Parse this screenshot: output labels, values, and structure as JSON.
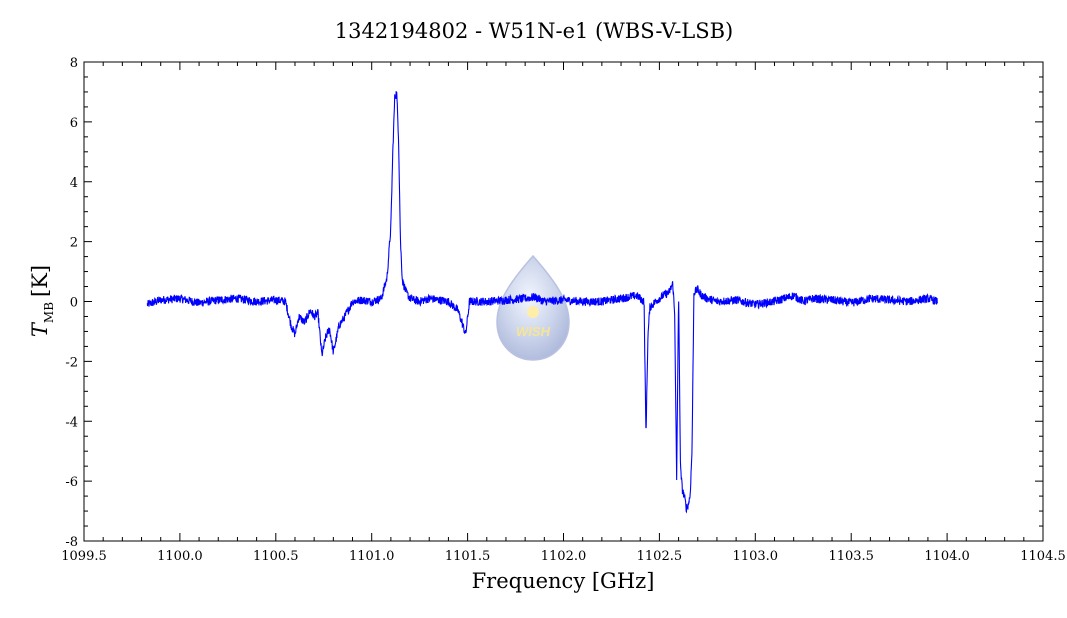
{
  "chart_data": {
    "type": "line",
    "title": "1342194802 - W51N-e1 (WBS-V-LSB)",
    "xlabel": "Frequency [GHz]",
    "ylabel_symbol": "T",
    "ylabel_subscript": "MB",
    "ylabel_unit": "[K]",
    "xlim": [
      1099.5,
      1104.5
    ],
    "ylim": [
      -8,
      8
    ],
    "x_ticks": [
      "1099.5",
      "1100.0",
      "1100.5",
      "1101.0",
      "1101.5",
      "1102.0",
      "1102.5",
      "1103.0",
      "1103.5",
      "1104.0",
      "1104.5"
    ],
    "y_ticks": [
      "8",
      "6",
      "4",
      "2",
      "0",
      "-2",
      "-4",
      "-6",
      "-8"
    ],
    "series": [
      {
        "color": "#0000ff",
        "x": [
          1099.83,
          1099.9,
          1100.0,
          1100.1,
          1100.2,
          1100.3,
          1100.4,
          1100.5,
          1100.55,
          1100.58,
          1100.6,
          1100.62,
          1100.65,
          1100.68,
          1100.7,
          1100.72,
          1100.74,
          1100.76,
          1100.78,
          1100.8,
          1100.83,
          1100.86,
          1100.9,
          1100.95,
          1101.0,
          1101.05,
          1101.08,
          1101.1,
          1101.11,
          1101.12,
          1101.13,
          1101.14,
          1101.15,
          1101.16,
          1101.18,
          1101.2,
          1101.22,
          1101.25,
          1101.3,
          1101.4,
          1101.45,
          1101.47,
          1101.49,
          1101.51,
          1101.55,
          1101.6,
          1101.7,
          1101.8,
          1101.85,
          1101.9,
          1102.0,
          1102.1,
          1102.2,
          1102.3,
          1102.38,
          1102.42,
          1102.43,
          1102.44,
          1102.45,
          1102.48,
          1102.52,
          1102.55,
          1102.57,
          1102.58,
          1102.59,
          1102.6,
          1102.61,
          1102.62,
          1102.63,
          1102.64,
          1102.65,
          1102.66,
          1102.67,
          1102.68,
          1102.7,
          1102.72,
          1102.75,
          1102.8,
          1102.9,
          1103.0,
          1103.1,
          1103.2,
          1103.25,
          1103.3,
          1103.4,
          1103.5,
          1103.6,
          1103.7,
          1103.8,
          1103.9,
          1103.95
        ],
        "y": [
          -0.1,
          0.05,
          0.1,
          -0.05,
          0.05,
          0.1,
          0.0,
          0.05,
          0.0,
          -0.8,
          -1.1,
          -0.5,
          -0.7,
          -0.3,
          -0.5,
          -0.4,
          -1.8,
          -1.2,
          -0.9,
          -1.7,
          -0.8,
          -0.5,
          0.0,
          0.05,
          0.0,
          0.1,
          0.8,
          2.5,
          5.0,
          6.8,
          7.0,
          5.5,
          2.0,
          0.7,
          0.3,
          0.1,
          0.05,
          0.0,
          0.1,
          0.0,
          -0.3,
          -0.7,
          -1.1,
          0.0,
          0.0,
          0.0,
          0.05,
          0.1,
          0.15,
          0.0,
          0.05,
          0.0,
          0.0,
          0.1,
          0.2,
          0.0,
          -4.5,
          -1.2,
          -0.2,
          0.0,
          0.2,
          0.3,
          0.6,
          -0.5,
          -6.0,
          0.3,
          -5.6,
          -6.3,
          -6.5,
          -6.9,
          -6.8,
          -6.5,
          -5.0,
          0.3,
          0.4,
          0.2,
          0.1,
          0.0,
          0.05,
          -0.1,
          0.0,
          0.2,
          0.0,
          0.1,
          0.05,
          -0.05,
          0.1,
          0.05,
          0.0,
          0.1,
          0.0
        ]
      }
    ],
    "grid": false,
    "watermark_text": "WISH"
  }
}
